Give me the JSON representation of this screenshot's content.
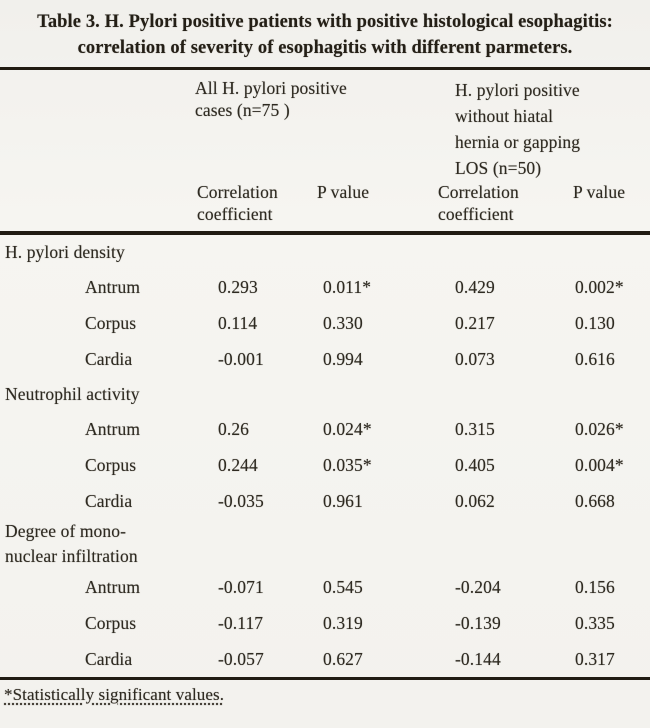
{
  "title": "Table 3. H. Pylori positive patients with positive histological esophagitis: correlation of severity of esophagitis with different parmeters.",
  "table": {
    "column_groups": [
      "All H. pylori positive\ncases (n=75 )",
      "H. pylori positive\nwithout hiatal\nhernia or gapping\nLOS (n=50)"
    ],
    "sub_headers": [
      "Correlation\ncoefficient",
      "P value",
      "Correlation\ncoefficient",
      "P value"
    ],
    "sections": [
      {
        "label": "H. pylori density",
        "rows": [
          {
            "site": "Antrum",
            "values": [
              "0.293",
              "0.011*",
              "0.429",
              "0.002*"
            ]
          },
          {
            "site": "Corpus",
            "values": [
              "0.114",
              "0.330",
              "0.217",
              "0.130"
            ]
          },
          {
            "site": "Cardia",
            "values": [
              "-0.001",
              "0.994",
              "0.073",
              "0.616"
            ]
          }
        ]
      },
      {
        "label": "Neutrophil activity",
        "rows": [
          {
            "site": "Antrum",
            "values": [
              "0.26",
              "0.024*",
              "0.315",
              "0.026*"
            ]
          },
          {
            "site": "Corpus",
            "values": [
              "0.244",
              "0.035*",
              "0.405",
              "0.004*"
            ]
          },
          {
            "site": "Cardia",
            "values": [
              "-0.035",
              "0.961",
              "0.062",
              "0.668"
            ]
          }
        ]
      },
      {
        "label": "Degree of mono-\nnuclear infiltration",
        "rows": [
          {
            "site": "Antrum",
            "values": [
              "-0.071",
              "0.545",
              "-0.204",
              "0.156"
            ]
          },
          {
            "site": "Corpus",
            "values": [
              "-0.117",
              "0.319",
              "-0.139",
              "0.335"
            ]
          },
          {
            "site": "Cardia",
            "values": [
              "-0.057",
              "0.627",
              "-0.144",
              "0.317"
            ]
          }
        ]
      }
    ]
  },
  "footnote": "*Statistically significant values."
}
